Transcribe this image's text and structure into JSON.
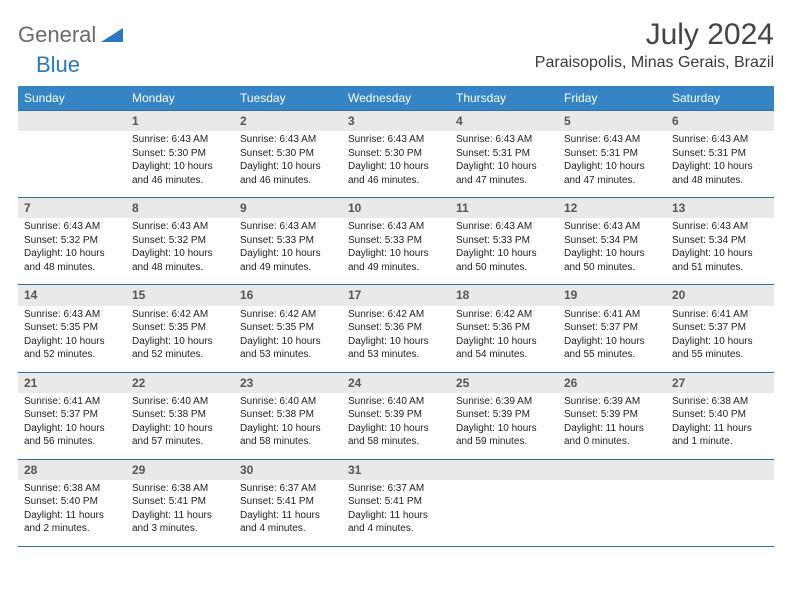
{
  "logo": {
    "text1": "General",
    "text2": "Blue"
  },
  "title": "July 2024",
  "location": "Paraisopolis, Minas Gerais, Brazil",
  "colors": {
    "header_bg": "#3585c6",
    "header_fg": "#ffffff",
    "row_border": "#2f6fa5",
    "daynum_bg": "#e9e9e9",
    "daynum_fg": "#555555",
    "body_text": "#222222",
    "logo_general": "#6b6b6b",
    "logo_blue": "#2a78bf"
  },
  "fonts": {
    "month_title_pt": 30,
    "location_pt": 16,
    "weekday_pt": 12,
    "daynum_pt": 12,
    "body_pt": 10
  },
  "weekdays": [
    "Sunday",
    "Monday",
    "Tuesday",
    "Wednesday",
    "Thursday",
    "Friday",
    "Saturday"
  ],
  "start_offset": 1,
  "days": [
    {
      "n": 1,
      "sr": "6:43 AM",
      "ss": "5:30 PM",
      "dl": "10 hours and 46 minutes."
    },
    {
      "n": 2,
      "sr": "6:43 AM",
      "ss": "5:30 PM",
      "dl": "10 hours and 46 minutes."
    },
    {
      "n": 3,
      "sr": "6:43 AM",
      "ss": "5:30 PM",
      "dl": "10 hours and 46 minutes."
    },
    {
      "n": 4,
      "sr": "6:43 AM",
      "ss": "5:31 PM",
      "dl": "10 hours and 47 minutes."
    },
    {
      "n": 5,
      "sr": "6:43 AM",
      "ss": "5:31 PM",
      "dl": "10 hours and 47 minutes."
    },
    {
      "n": 6,
      "sr": "6:43 AM",
      "ss": "5:31 PM",
      "dl": "10 hours and 48 minutes."
    },
    {
      "n": 7,
      "sr": "6:43 AM",
      "ss": "5:32 PM",
      "dl": "10 hours and 48 minutes."
    },
    {
      "n": 8,
      "sr": "6:43 AM",
      "ss": "5:32 PM",
      "dl": "10 hours and 48 minutes."
    },
    {
      "n": 9,
      "sr": "6:43 AM",
      "ss": "5:33 PM",
      "dl": "10 hours and 49 minutes."
    },
    {
      "n": 10,
      "sr": "6:43 AM",
      "ss": "5:33 PM",
      "dl": "10 hours and 49 minutes."
    },
    {
      "n": 11,
      "sr": "6:43 AM",
      "ss": "5:33 PM",
      "dl": "10 hours and 50 minutes."
    },
    {
      "n": 12,
      "sr": "6:43 AM",
      "ss": "5:34 PM",
      "dl": "10 hours and 50 minutes."
    },
    {
      "n": 13,
      "sr": "6:43 AM",
      "ss": "5:34 PM",
      "dl": "10 hours and 51 minutes."
    },
    {
      "n": 14,
      "sr": "6:43 AM",
      "ss": "5:35 PM",
      "dl": "10 hours and 52 minutes."
    },
    {
      "n": 15,
      "sr": "6:42 AM",
      "ss": "5:35 PM",
      "dl": "10 hours and 52 minutes."
    },
    {
      "n": 16,
      "sr": "6:42 AM",
      "ss": "5:35 PM",
      "dl": "10 hours and 53 minutes."
    },
    {
      "n": 17,
      "sr": "6:42 AM",
      "ss": "5:36 PM",
      "dl": "10 hours and 53 minutes."
    },
    {
      "n": 18,
      "sr": "6:42 AM",
      "ss": "5:36 PM",
      "dl": "10 hours and 54 minutes."
    },
    {
      "n": 19,
      "sr": "6:41 AM",
      "ss": "5:37 PM",
      "dl": "10 hours and 55 minutes."
    },
    {
      "n": 20,
      "sr": "6:41 AM",
      "ss": "5:37 PM",
      "dl": "10 hours and 55 minutes."
    },
    {
      "n": 21,
      "sr": "6:41 AM",
      "ss": "5:37 PM",
      "dl": "10 hours and 56 minutes."
    },
    {
      "n": 22,
      "sr": "6:40 AM",
      "ss": "5:38 PM",
      "dl": "10 hours and 57 minutes."
    },
    {
      "n": 23,
      "sr": "6:40 AM",
      "ss": "5:38 PM",
      "dl": "10 hours and 58 minutes."
    },
    {
      "n": 24,
      "sr": "6:40 AM",
      "ss": "5:39 PM",
      "dl": "10 hours and 58 minutes."
    },
    {
      "n": 25,
      "sr": "6:39 AM",
      "ss": "5:39 PM",
      "dl": "10 hours and 59 minutes."
    },
    {
      "n": 26,
      "sr": "6:39 AM",
      "ss": "5:39 PM",
      "dl": "11 hours and 0 minutes."
    },
    {
      "n": 27,
      "sr": "6:38 AM",
      "ss": "5:40 PM",
      "dl": "11 hours and 1 minute."
    },
    {
      "n": 28,
      "sr": "6:38 AM",
      "ss": "5:40 PM",
      "dl": "11 hours and 2 minutes."
    },
    {
      "n": 29,
      "sr": "6:38 AM",
      "ss": "5:41 PM",
      "dl": "11 hours and 3 minutes."
    },
    {
      "n": 30,
      "sr": "6:37 AM",
      "ss": "5:41 PM",
      "dl": "11 hours and 4 minutes."
    },
    {
      "n": 31,
      "sr": "6:37 AM",
      "ss": "5:41 PM",
      "dl": "11 hours and 4 minutes."
    }
  ],
  "labels": {
    "sunrise": "Sunrise:",
    "sunset": "Sunset:",
    "daylight": "Daylight:"
  }
}
